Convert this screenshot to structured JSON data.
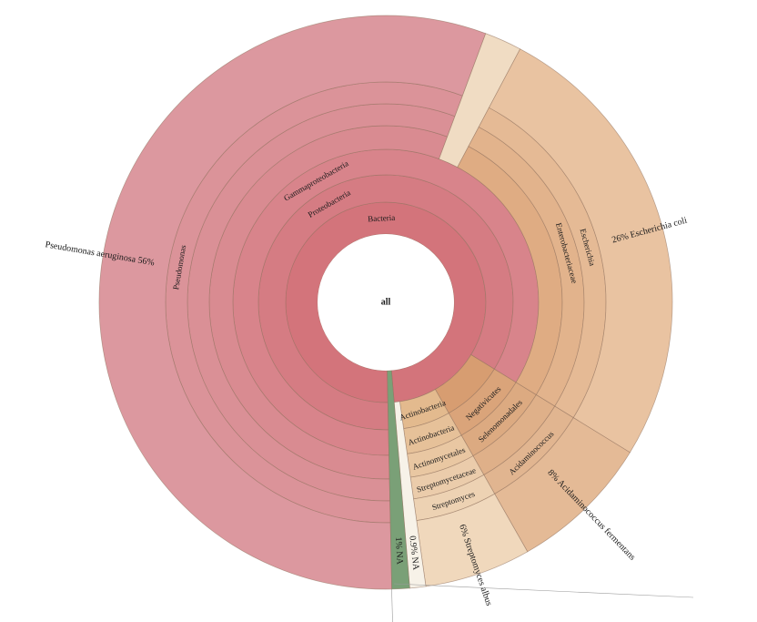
{
  "page": {
    "background": "#ffffff"
  },
  "chart_data": {
    "type": "sunburst",
    "title": "",
    "total": 100,
    "start_angle_deg": 178.8,
    "center": [
      424,
      332
    ],
    "ring_radii": [
      75,
      110,
      140,
      168,
      194,
      218,
      242,
      315
    ],
    "ext_label_radius": 258,
    "center_label": "all",
    "stroke_color": "#8f6f5c",
    "label_color": "#1a1a1a",
    "decor_lines": [
      [
        [
          430.5,
          647
        ],
        [
          431.5,
          683
        ]
      ],
      [
        [
          433,
          641
        ],
        [
          762,
          656
        ]
      ]
    ],
    "tree": {
      "name": "all",
      "value": 100,
      "children": [
        {
          "name": "Bacteria",
          "value": 99.0,
          "color": "#d3747b",
          "show_label": true,
          "children": [
            {
              "name": "Proteobacteria",
              "value": 84.1,
              "color": "#d57c83",
              "show_label": true,
              "children": [
                {
                  "name": "Gammaproteobacteria",
                  "value": 84.1,
                  "color": "#d8848b",
                  "show_label": true,
                  "children": [
                    {
                      "name": "",
                      "value": 56,
                      "color": "#d98b91",
                      "show_label": false,
                      "children": [
                        {
                          "name": "",
                          "value": 56,
                          "color": "#da9096",
                          "show_label": false,
                          "children": [
                            {
                              "name": "Pseudomonas",
                              "value": 56,
                              "color": "#db9399",
                              "show_label": true,
                              "children": [
                                {
                                  "name": "Pseudomonas aeruginosa",
                                  "value": 56,
                                  "color": "#dc989f",
                                  "show_label": false,
                                  "ext_label": {
                                    "pct": "56%",
                                    "name": "Pseudomonas aeruginosa"
                                  }
                                }
                              ]
                            }
                          ]
                        }
                      ]
                    },
                    {
                      "name": "",
                      "value": 2.1,
                      "color": "#f0dcc3",
                      "show_label": false,
                      "span_to_outer": true
                    },
                    {
                      "name": "",
                      "value": 26,
                      "color": "#dfac83",
                      "show_label": false,
                      "children": [
                        {
                          "name": "Enterobacteriaceae",
                          "value": 26,
                          "color": "#e2b38c",
                          "show_label": true,
                          "children": [
                            {
                              "name": "Escherichia",
                              "value": 26,
                              "color": "#e5ba95",
                              "show_label": true,
                              "children": [
                                {
                                  "name": "Escherichia coli",
                                  "value": 26,
                                  "color": "#e9c3a1",
                                  "show_label": false,
                                  "ext_label": {
                                    "pct": "26%",
                                    "name": "Escherichia coli"
                                  }
                                }
                              ]
                            }
                          ]
                        }
                      ]
                    }
                  ]
                }
              ]
            },
            {
              "name": "",
              "value": 8,
              "color": "#d79d71",
              "show_label": false,
              "children": [
                {
                  "name": "Negativicutes",
                  "value": 8,
                  "color": "#daa47a",
                  "show_label": true,
                  "children": [
                    {
                      "name": "Selenomonadales",
                      "value": 8,
                      "color": "#dcaa81",
                      "show_label": true,
                      "children": [
                        {
                          "name": "",
                          "value": 8,
                          "color": "#dfb089",
                          "show_label": false,
                          "children": [
                            {
                              "name": "Acidaminococcus",
                              "value": 8,
                              "color": "#e1b590",
                              "show_label": true,
                              "children": [
                                {
                                  "name": "Acidaminococcus fermentans",
                                  "value": 8,
                                  "color": "#e4ba96",
                                  "show_label": false,
                                  "ext_label": {
                                    "pct": "8%",
                                    "name": "Acidaminococcus fermentans"
                                  }
                                }
                              ]
                            }
                          ]
                        }
                      ]
                    }
                  ]
                }
              ]
            },
            {
              "name": "Actinobacteria",
              "value": 6,
              "color": "#e3ba8e",
              "show_label": true,
              "children": [
                {
                  "name": "Actinobacteria",
                  "value": 6,
                  "color": "#e6c199",
                  "show_label": true,
                  "children": [
                    {
                      "name": "Actinomycetales",
                      "value": 6,
                      "color": "#e9c7a2",
                      "show_label": true,
                      "children": [
                        {
                          "name": "Streptomycetaceae",
                          "value": 6,
                          "color": "#ebccab",
                          "show_label": true,
                          "children": [
                            {
                              "name": "Streptomyces",
                              "value": 6,
                              "color": "#edd2b3",
                              "show_label": true,
                              "children": [
                                {
                                  "name": "Streptomyces albus",
                                  "value": 6,
                                  "color": "#f0d8bc",
                                  "show_label": false,
                                  "ext_label": {
                                    "pct": "6%",
                                    "name": "Streptomyces albus"
                                  }
                                }
                              ]
                            }
                          ]
                        }
                      ]
                    }
                  ]
                }
              ]
            },
            {
              "name": "NA",
              "value": 0.9,
              "color": "#f7f2e8",
              "show_label": false,
              "span_to_outer": true,
              "ext_label": {
                "pct": "0.9%",
                "name": "NA"
              }
            }
          ]
        },
        {
          "name": "NA",
          "value": 1.0,
          "color": "#7aa077",
          "show_label": false,
          "span_to_outer": true,
          "ext_label": {
            "pct": "1%",
            "name": "NA"
          }
        }
      ]
    }
  }
}
